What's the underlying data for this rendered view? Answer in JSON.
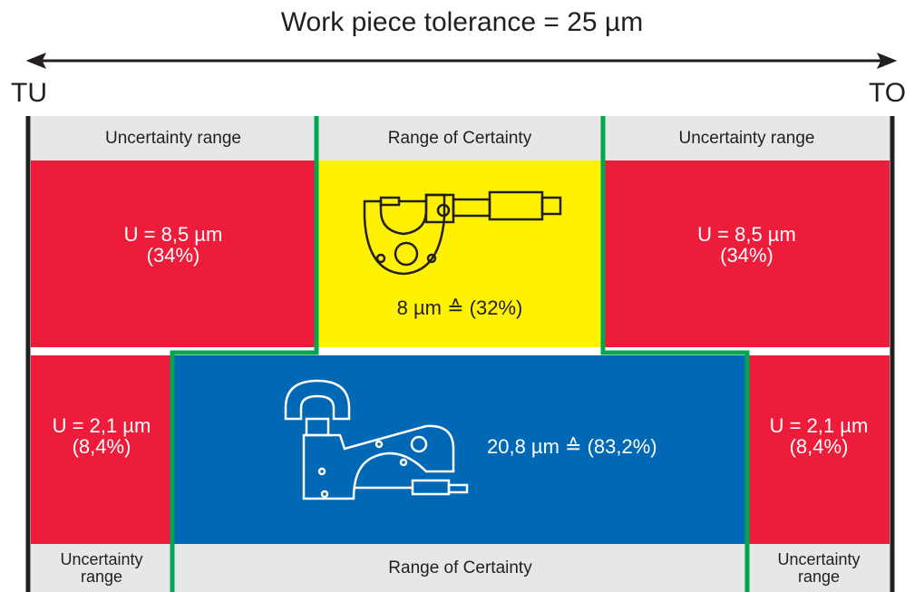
{
  "title": "Work piece tolerance = 25 µm",
  "left_label": "TU",
  "right_label": "TO",
  "top_row": {
    "headers": [
      "Uncertainty range",
      "Range of Certainty",
      "Uncertainty range"
    ],
    "left": [
      "U = 8,5 µm",
      "(34%)"
    ],
    "center": "8 µm ≙ (32%)",
    "right": [
      "U = 8,5 µm",
      "(34%)"
    ]
  },
  "bottom_row": {
    "left": [
      "U = 2,1 µm",
      "(8,4%)"
    ],
    "center": "20,8 µm ≙ (83,2%)",
    "right": [
      "U = 2,1 µm",
      "(8,4%)"
    ],
    "footers": [
      "Uncertainty range",
      "Range of Certainty",
      "Uncertainty range"
    ]
  }
}
